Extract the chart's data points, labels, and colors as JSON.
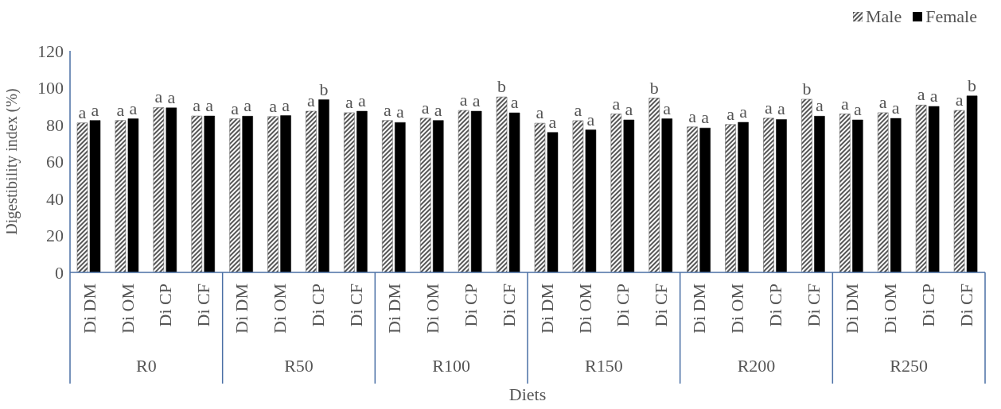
{
  "chart_data": {
    "type": "bar",
    "xlabel": "Diets",
    "ylabel": "Digestibility index (%)",
    "categories": [
      "Di DM",
      "Di OM",
      "Di CP",
      "Di CF",
      "Di DM",
      "Di OM",
      "Di CP",
      "Di CF",
      "Di DM",
      "Di OM",
      "Di CP",
      "Di CF",
      "Di DM",
      "Di OM",
      "Di CP",
      "Di CF",
      "Di DM",
      "Di OM",
      "Di CP",
      "Di CF",
      "Di DM",
      "Di OM",
      "Di CP",
      "Di CF"
    ],
    "annotations": [
      "R0",
      "R50",
      "R100",
      "R150",
      "R200",
      "R250"
    ],
    "series": [
      {
        "name": "Male",
        "color": "#555555",
        "values": [
          81,
          82.3,
          89.3,
          84.7,
          83.2,
          84.4,
          87.3,
          86.5,
          82.3,
          83.5,
          87.7,
          95,
          80.8,
          82.2,
          85.8,
          94.4,
          78.8,
          80.1,
          83.5,
          93.8,
          85.8,
          86.5,
          90.6,
          87.7
        ],
        "value_labels": [
          "a",
          "a",
          "a",
          "a",
          "a",
          "a",
          "a",
          "a",
          "a",
          "a",
          "a",
          "b",
          "a",
          "a",
          "a",
          "b",
          "a",
          "a",
          "a",
          "b",
          "a",
          "a",
          "a",
          "a"
        ]
      },
      {
        "name": "Female",
        "color": "#000000",
        "values": [
          82.3,
          83.2,
          89.1,
          84.7,
          84.6,
          84.9,
          93.5,
          87.3,
          81.2,
          82.3,
          87.3,
          86.4,
          75.8,
          77.2,
          82.6,
          83.2,
          78.2,
          81.3,
          82.8,
          84.6,
          82.6,
          83.4,
          89.9,
          95.6
        ],
        "value_labels": [
          "a",
          "a",
          "a",
          "a",
          "a",
          "a",
          "b",
          "a",
          "a",
          "a",
          "a",
          "a",
          "a",
          "a",
          "a",
          "a",
          "a",
          "a",
          "a",
          "a",
          "a",
          "a",
          "a",
          "b"
        ]
      }
    ],
    "ylim": [
      0,
      120
    ],
    "yticks": [
      0,
      20,
      40,
      60,
      80,
      100,
      120
    ],
    "legend": "top right"
  }
}
